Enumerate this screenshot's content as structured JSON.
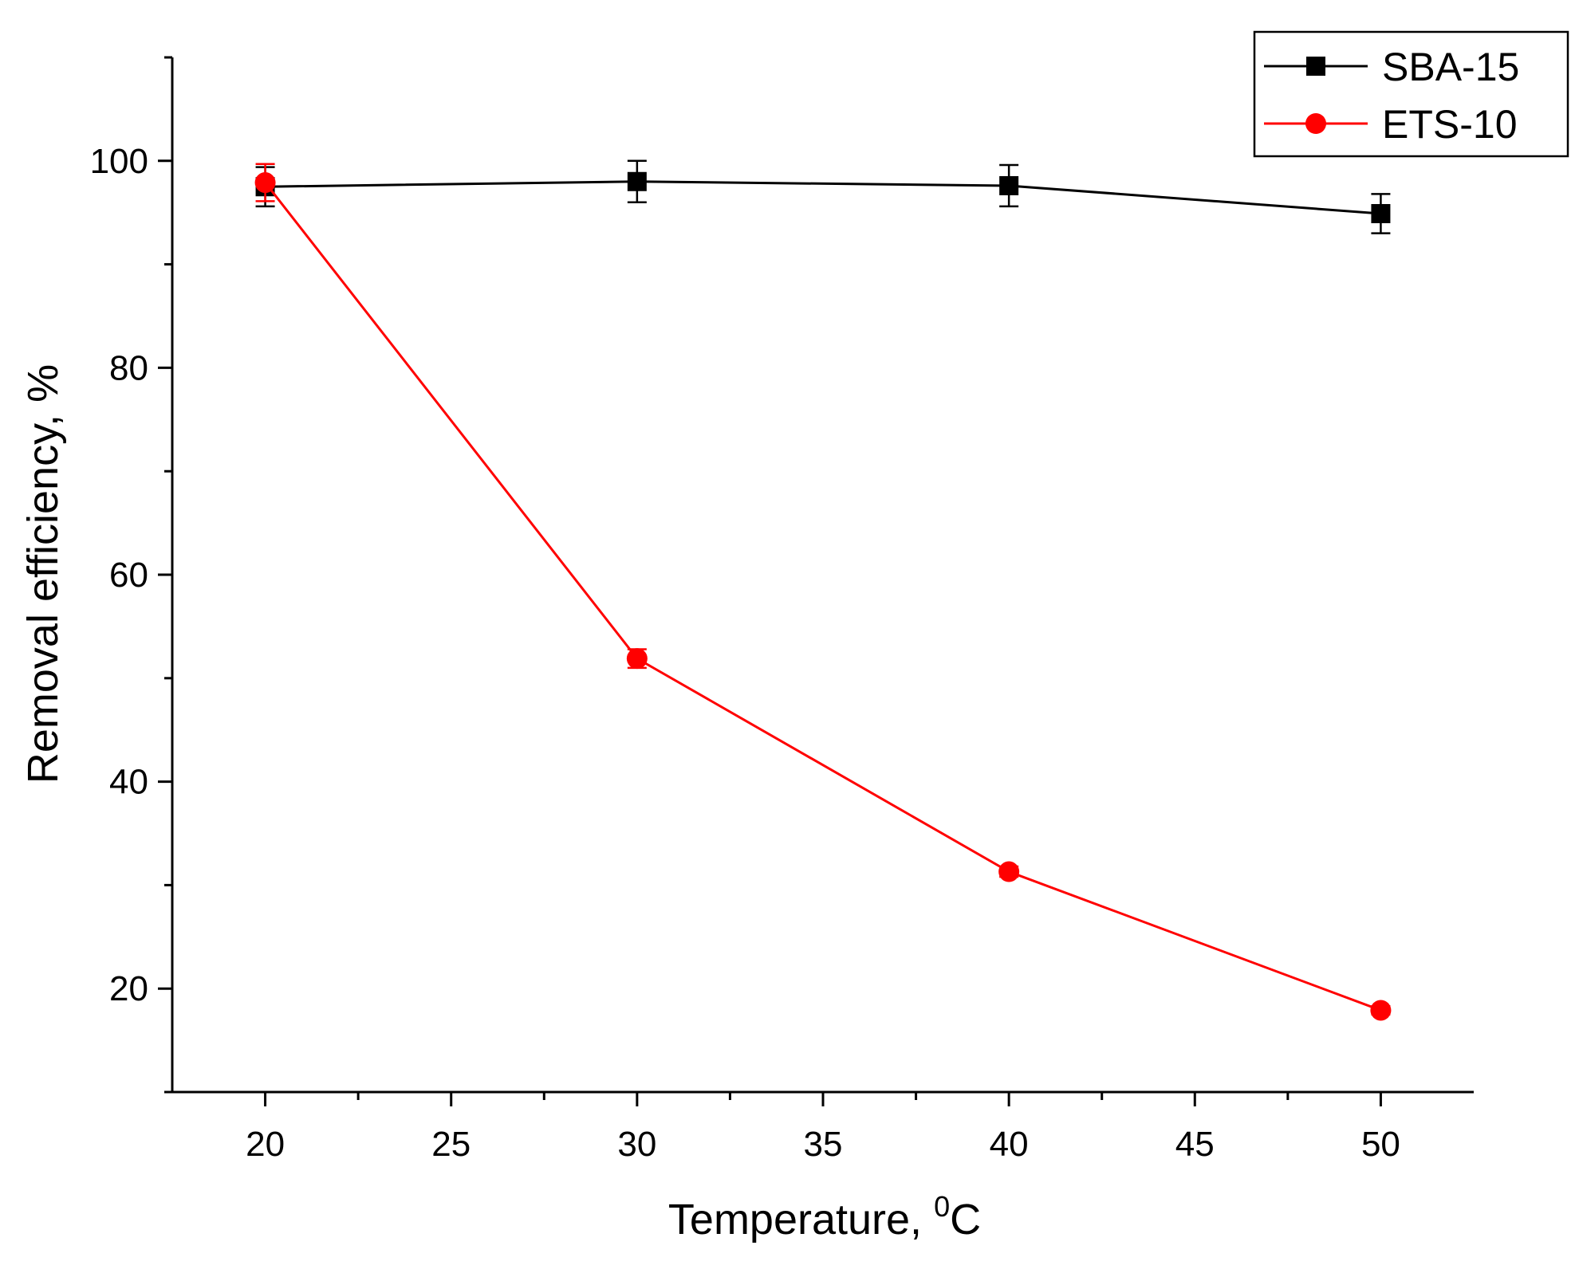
{
  "chart_data": {
    "type": "line",
    "title": "",
    "xlabel": "Temperature, ",
    "xlabel_superscript": "0",
    "xlabel_unit": "C",
    "ylabel": "Removal efficiency, %",
    "xlim": [
      17.5,
      52.5
    ],
    "ylim": [
      10,
      110
    ],
    "x_major_ticks": [
      20,
      25,
      30,
      35,
      40,
      45,
      50
    ],
    "x_minor_ticks": [
      22.5,
      27.5,
      32.5,
      37.5,
      42.5,
      47.5
    ],
    "y_major_ticks": [
      20,
      40,
      60,
      80,
      100
    ],
    "y_minor_ticks": [
      10,
      30,
      50,
      70,
      90,
      110
    ],
    "grid": false,
    "legend_position": "top-right",
    "series": [
      {
        "name": "SBA-15",
        "color": "#000000",
        "marker": "square",
        "x": [
          20,
          30,
          40,
          50
        ],
        "y": [
          97.5,
          98.0,
          97.6,
          94.9
        ],
        "error": [
          1.9,
          2.0,
          2.0,
          1.9
        ]
      },
      {
        "name": "ETS-10",
        "color": "#ff0000",
        "marker": "circle",
        "x": [
          20,
          30,
          40,
          50
        ],
        "y": [
          97.9,
          51.9,
          31.3,
          17.9
        ],
        "error": [
          1.8,
          0.9,
          0.5,
          0.4
        ]
      }
    ]
  }
}
